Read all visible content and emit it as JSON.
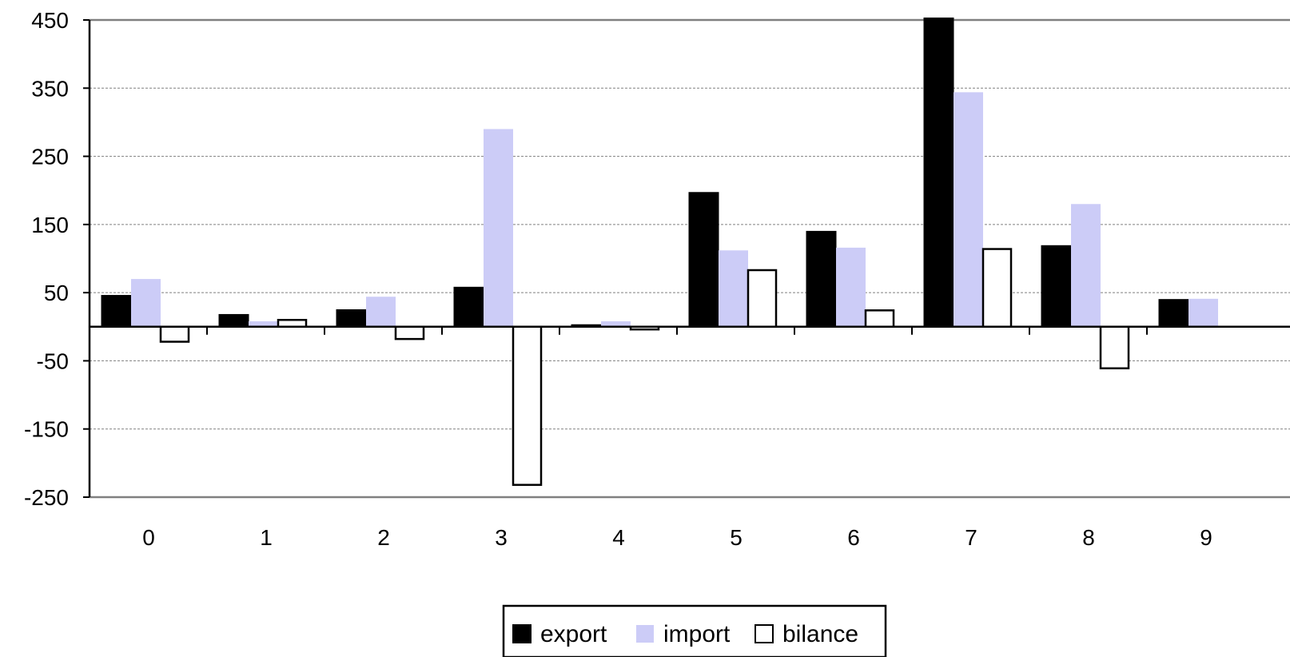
{
  "chart_data": {
    "type": "bar",
    "title": "",
    "xlabel": "",
    "ylabel": "",
    "categories": [
      "0",
      "1",
      "2",
      "3",
      "4",
      "5",
      "6",
      "7",
      "8",
      "9"
    ],
    "yticks": [
      450,
      350,
      250,
      150,
      50,
      -50,
      -150,
      -250
    ],
    "ylim": [
      -250,
      450
    ],
    "grid": true,
    "legend_position": "bottom",
    "series": [
      {
        "name": "export",
        "color": "#000000",
        "values": [
          46,
          18,
          25,
          58,
          3,
          197,
          140,
          453,
          119,
          40
        ]
      },
      {
        "name": "import",
        "color": "#ccccf7",
        "values": [
          70,
          8,
          44,
          290,
          8,
          112,
          116,
          344,
          180,
          41
        ]
      },
      {
        "name": "bilance",
        "color": "#ffffff",
        "values": [
          -22,
          10,
          -18,
          -232,
          -4,
          83,
          24,
          114,
          -61,
          0
        ]
      }
    ]
  }
}
